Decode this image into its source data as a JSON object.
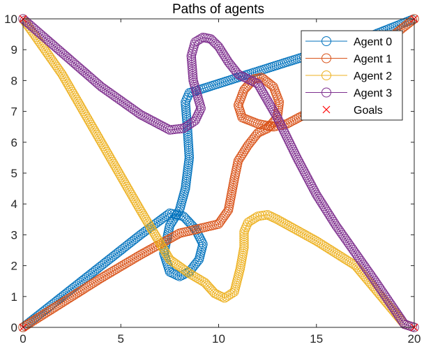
{
  "chart_data": {
    "type": "line",
    "title": "Paths of agents",
    "xlabel": "",
    "ylabel": "",
    "xlim": [
      0,
      20
    ],
    "ylim": [
      0,
      10
    ],
    "xticks": [
      0,
      5,
      10,
      15,
      20
    ],
    "yticks": [
      0,
      1,
      2,
      3,
      4,
      5,
      6,
      7,
      8,
      9,
      10
    ],
    "grid": false,
    "legend_position": "top-right",
    "marker": "circle",
    "series": [
      {
        "name": "Agent 0",
        "color": "#0072BD",
        "x": [
          0,
          2,
          4,
          6,
          7.5,
          8.2,
          8.8,
          9.2,
          9,
          8.5,
          8,
          7.5,
          7.2,
          7.5,
          8,
          8.3,
          8.5,
          8.4,
          8.3,
          8.5,
          9,
          9.5,
          12,
          15,
          18,
          20
        ],
        "y": [
          0,
          1,
          2,
          3,
          3.7,
          3.6,
          3.2,
          2.7,
          2.2,
          1.8,
          1.65,
          1.8,
          2.4,
          3.3,
          3.8,
          4.5,
          5.5,
          6.5,
          7.3,
          7.6,
          7.7,
          7.8,
          8.3,
          8.9,
          9.5,
          10
        ]
      },
      {
        "name": "Agent 1",
        "color": "#D95319",
        "x": [
          0,
          2,
          4,
          6,
          8,
          10,
          10.5,
          10.8,
          11,
          11.5,
          12,
          12.5,
          13,
          13.1,
          12.8,
          12.2,
          11.8,
          11.3,
          11,
          11.2,
          12,
          12.8,
          13.5,
          15,
          17,
          20
        ],
        "y": [
          0,
          0.8,
          1.6,
          2.35,
          3.05,
          3.35,
          3.8,
          4.8,
          5.4,
          5.9,
          6.3,
          6.45,
          6.8,
          7.3,
          7.8,
          8.1,
          8.05,
          7.7,
          7.2,
          6.8,
          6.6,
          6.5,
          6.6,
          7.1,
          8.5,
          10
        ]
      },
      {
        "name": "Agent 2",
        "color": "#EDB120",
        "x": [
          0,
          2,
          4,
          6,
          7.5,
          8.5,
          9.3,
          9.8,
          10.3,
          10.8,
          11.1,
          11.3,
          11.3,
          11.5,
          12,
          12.5,
          13,
          15,
          17,
          19.5,
          20
        ],
        "y": [
          10,
          8.2,
          6,
          3.8,
          2.2,
          1.75,
          1.45,
          1.1,
          0.95,
          1.15,
          1.9,
          2.6,
          3.1,
          3.4,
          3.6,
          3.65,
          3.5,
          2.8,
          2,
          0.1,
          0
        ]
      },
      {
        "name": "Agent 3",
        "color": "#7E2F8E",
        "x": [
          0,
          2,
          4,
          6,
          7.5,
          8.2,
          8.8,
          9.1,
          8.7,
          8.6,
          8.8,
          9.2,
          9.6,
          10,
          10.5,
          11,
          11.5,
          12,
          13,
          14,
          15,
          16,
          17,
          18,
          19.5,
          20
        ],
        "y": [
          10,
          8.9,
          7.8,
          6.9,
          6.4,
          6.45,
          6.7,
          7.1,
          8,
          8.8,
          9.25,
          9.4,
          9.35,
          9.1,
          8.6,
          8.2,
          8.05,
          7.9,
          6.8,
          5.5,
          4.3,
          3.3,
          2.4,
          1.5,
          0.1,
          0
        ]
      },
      {
        "name": "Goals",
        "color": "#FF0000",
        "marker": "x",
        "x": [
          20,
          20,
          0,
          0
        ],
        "y": [
          10,
          0,
          0,
          10
        ]
      }
    ]
  }
}
